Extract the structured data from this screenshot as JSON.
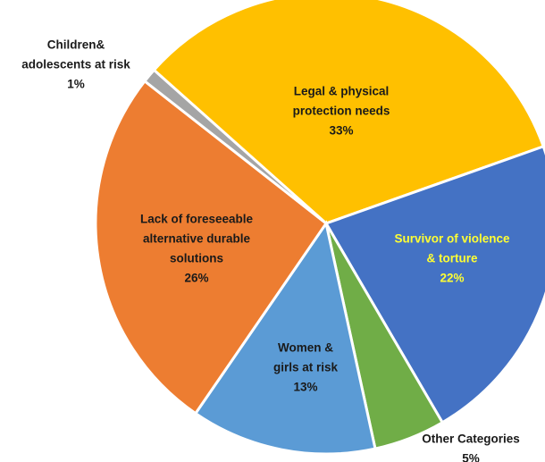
{
  "chart_data": {
    "type": "pie",
    "series": [
      {
        "name": [
          "Legal & physical",
          "protection needs"
        ],
        "value_label": "33%",
        "color": "#ffc000",
        "label_color": "#1a1a1a"
      },
      {
        "name": [
          "Survivor of violence",
          "& torture"
        ],
        "value_label": "22%",
        "color": "#4472c4",
        "label_color": "#ffff33"
      },
      {
        "name": [
          "Other Categories"
        ],
        "value_label": "5%",
        "color": "#70ad47",
        "label_color": "#1a1a1a"
      },
      {
        "name": [
          "Women &",
          "girls at risk"
        ],
        "value_label": "13%",
        "color": "#5b9bd5",
        "label_color": "#1a1a1a"
      },
      {
        "name": [
          "Lack of foreseeable",
          "alternative durable",
          "solutions"
        ],
        "value_label": "26%",
        "color": "#ed7d31",
        "label_color": "#1a1a1a"
      },
      {
        "name": [
          "Children&",
          "adolescents at risk"
        ],
        "value_label": "1%",
        "color": "#a5a5a5",
        "label_color": "#1a1a1a"
      }
    ],
    "values": [
      33,
      22,
      5,
      13,
      26,
      1
    ]
  }
}
